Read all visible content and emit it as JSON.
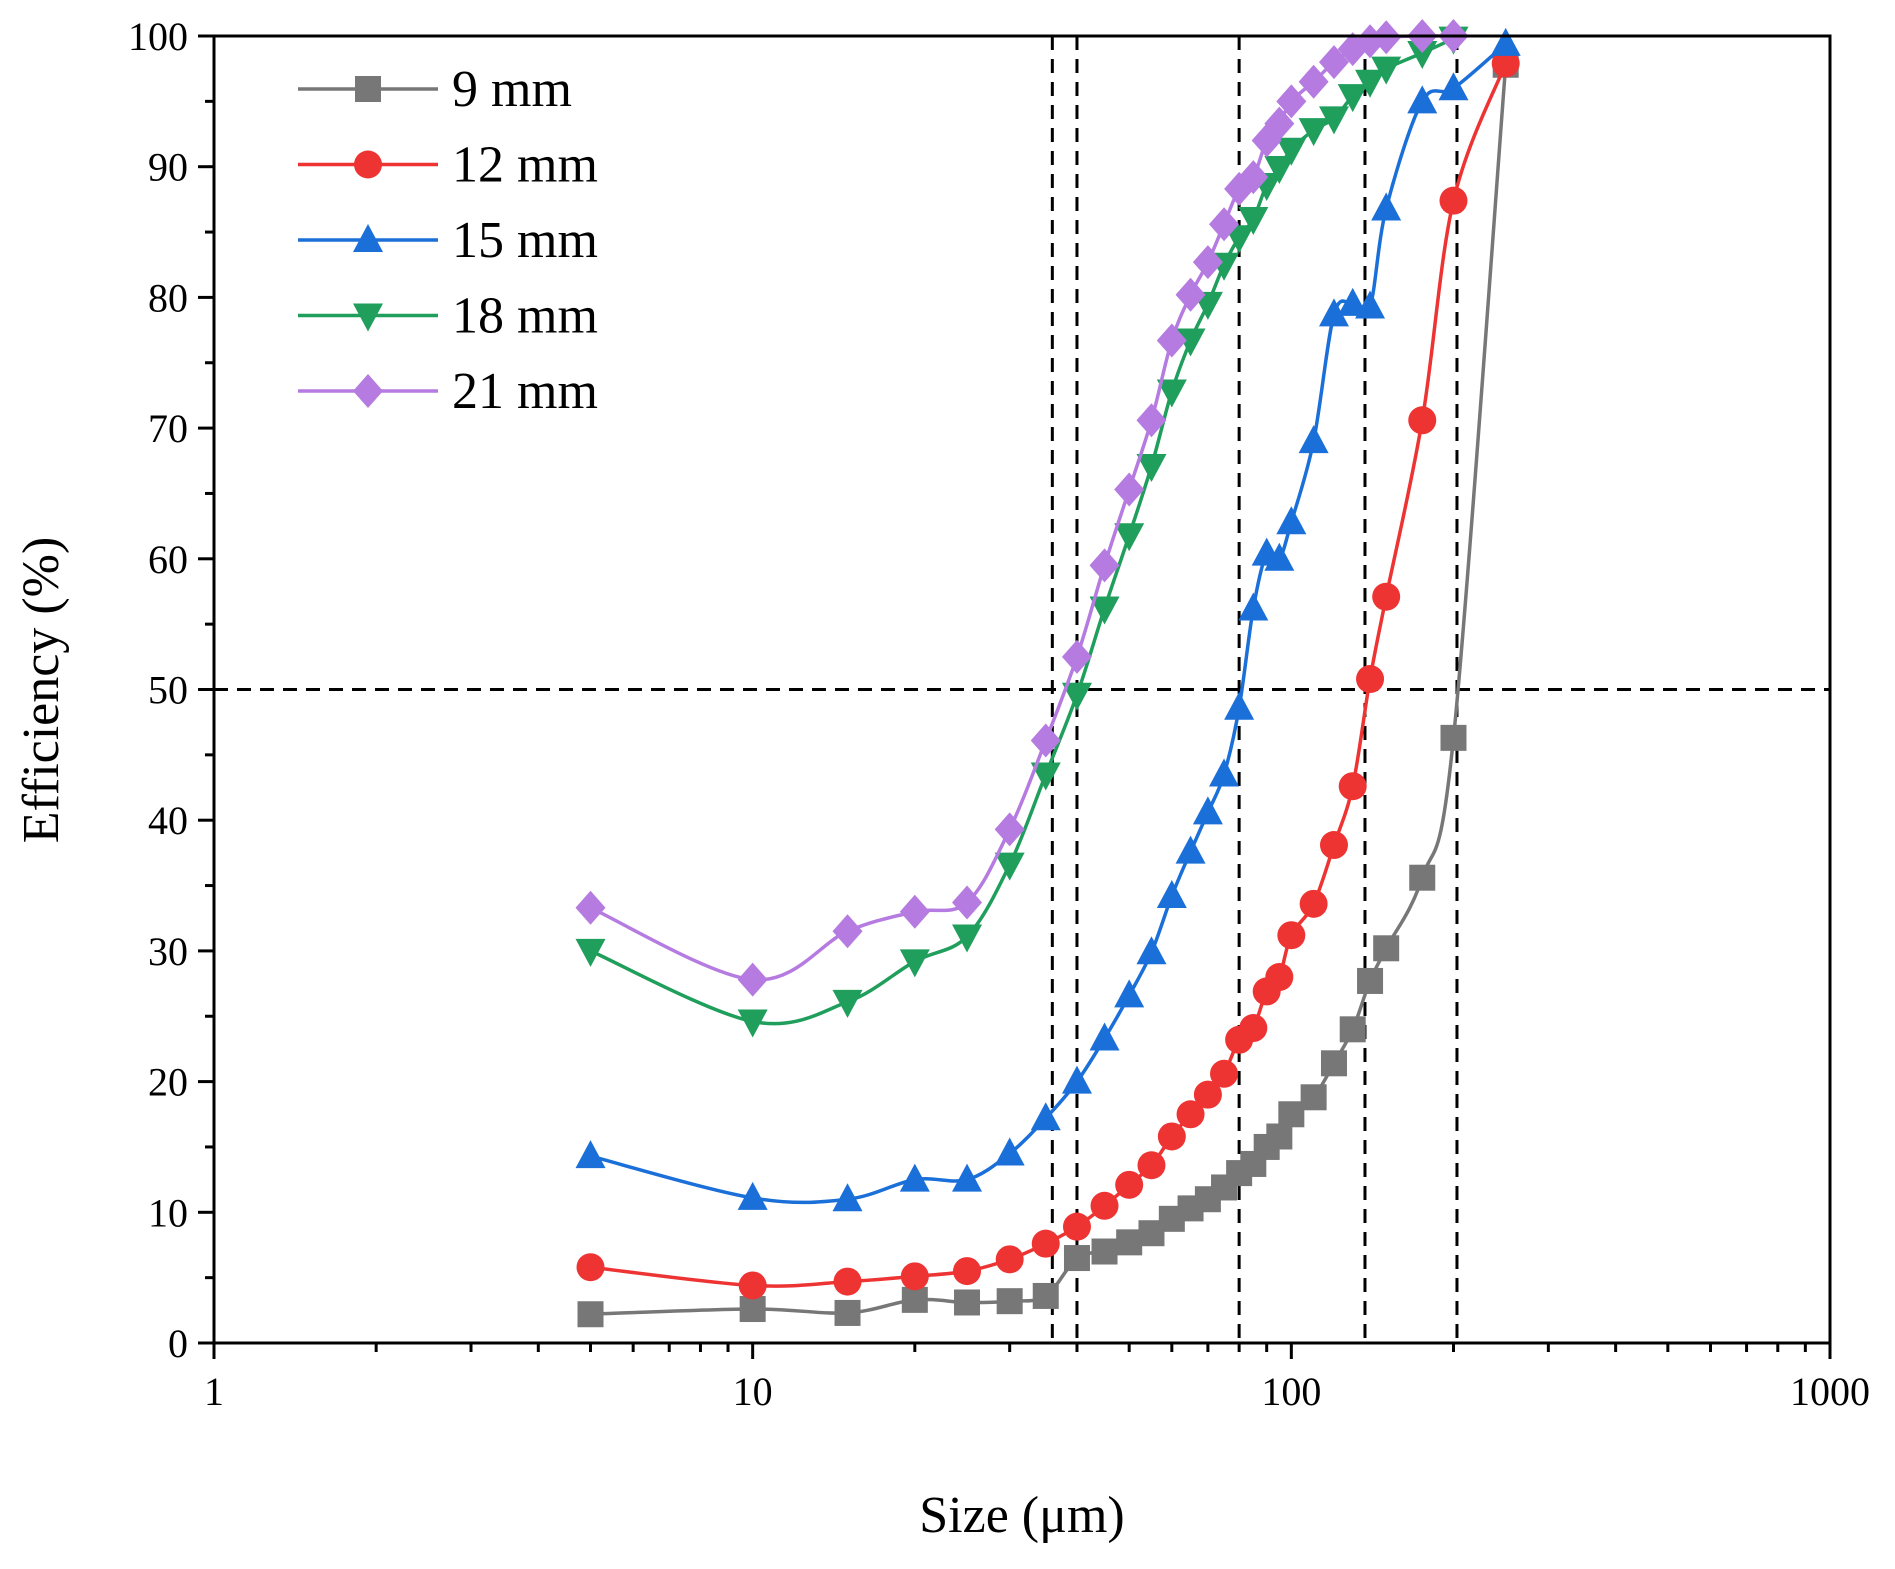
{
  "chart_data": {
    "type": "line",
    "title": "",
    "xlabel": "Size (μm)",
    "ylabel": "Efficiency (%)",
    "x_scale": "log",
    "xlim": [
      1,
      1000
    ],
    "ylim": [
      0,
      100
    ],
    "x_ticks": [
      1,
      10,
      100,
      1000
    ],
    "x_tick_labels": [
      "1",
      "10",
      "100",
      "1000"
    ],
    "y_ticks": [
      0,
      10,
      20,
      30,
      40,
      50,
      60,
      70,
      80,
      90,
      100
    ],
    "y_tick_labels": [
      "0",
      "10",
      "20",
      "30",
      "40",
      "50",
      "60",
      "70",
      "80",
      "90",
      "100"
    ],
    "grid": false,
    "legend_position": "top-left",
    "reference_lines": {
      "horizontal": [
        50
      ],
      "vertical": [
        36,
        40,
        80,
        137,
        203
      ]
    },
    "series": [
      {
        "name": "9 mm",
        "color": "#777777",
        "marker": "square",
        "x": [
          5,
          10,
          15,
          20,
          25,
          30,
          35,
          40,
          45,
          50,
          55,
          60,
          65,
          70,
          75,
          80,
          85,
          90,
          95,
          100,
          110,
          120,
          130,
          140,
          150,
          175,
          200,
          250
        ],
        "y": [
          2.2,
          2.6,
          2.3,
          3.3,
          3.1,
          3.2,
          3.6,
          6.5,
          7.0,
          7.7,
          8.4,
          9.5,
          10.3,
          11.0,
          11.9,
          13.0,
          13.7,
          15.0,
          15.8,
          17.5,
          18.8,
          21.4,
          24.0,
          27.7,
          30.2,
          35.6,
          46.3,
          97.8
        ]
      },
      {
        "name": "12 mm",
        "color": "#ee3333",
        "marker": "circle",
        "x": [
          5,
          10,
          15,
          20,
          25,
          30,
          35,
          40,
          45,
          50,
          55,
          60,
          65,
          70,
          75,
          80,
          85,
          90,
          95,
          100,
          110,
          120,
          130,
          140,
          150,
          175,
          200,
          250
        ],
        "y": [
          5.8,
          4.4,
          4.7,
          5.1,
          5.5,
          6.4,
          7.6,
          8.9,
          10.5,
          12.1,
          13.6,
          15.8,
          17.5,
          19.0,
          20.6,
          23.2,
          24.1,
          26.9,
          28.0,
          31.2,
          33.6,
          38.1,
          42.6,
          50.8,
          57.1,
          70.6,
          87.4,
          97.9
        ]
      },
      {
        "name": "15 mm",
        "color": "#1a6fd8",
        "marker": "triangle-up",
        "x": [
          5,
          10,
          15,
          20,
          25,
          30,
          35,
          40,
          45,
          50,
          55,
          60,
          65,
          70,
          75,
          80,
          85,
          90,
          95,
          100,
          110,
          120,
          130,
          140,
          150,
          175,
          200,
          250
        ],
        "y": [
          14.3,
          11.1,
          11.0,
          12.5,
          12.5,
          14.5,
          17.2,
          20.0,
          23.3,
          26.6,
          29.9,
          34.2,
          37.6,
          40.6,
          43.5,
          48.6,
          56.2,
          60.4,
          60.0,
          62.8,
          69.0,
          78.7,
          79.5,
          79.3,
          86.8,
          95.0,
          96.0,
          99.4
        ]
      },
      {
        "name": "18 mm",
        "color": "#1f9e5c",
        "marker": "triangle-down",
        "x": [
          5,
          10,
          15,
          20,
          25,
          30,
          35,
          40,
          45,
          50,
          55,
          60,
          65,
          70,
          75,
          80,
          85,
          90,
          95,
          100,
          110,
          120,
          130,
          140,
          150,
          175,
          200
        ],
        "y": [
          30.0,
          24.6,
          26.1,
          29.2,
          31.1,
          36.6,
          43.5,
          49.6,
          56.2,
          61.8,
          67.1,
          72.8,
          76.7,
          79.5,
          82.5,
          84.6,
          86.0,
          88.6,
          89.9,
          91.3,
          92.8,
          93.7,
          95.4,
          96.5,
          97.5,
          98.7,
          99.8
        ]
      },
      {
        "name": "21 mm",
        "color": "#b57be0",
        "marker": "diamond",
        "x": [
          5,
          10,
          15,
          20,
          25,
          30,
          35,
          40,
          45,
          50,
          55,
          60,
          65,
          70,
          75,
          80,
          85,
          90,
          95,
          100,
          110,
          120,
          130,
          140,
          150,
          175,
          200
        ],
        "y": [
          33.3,
          27.8,
          31.5,
          33.0,
          33.7,
          39.3,
          46.1,
          52.5,
          59.5,
          65.3,
          70.6,
          76.7,
          80.2,
          82.7,
          85.6,
          88.3,
          89.2,
          92.0,
          93.3,
          95.0,
          96.5,
          98.0,
          99.0,
          99.6,
          99.9,
          100.0,
          100.0
        ]
      }
    ]
  }
}
